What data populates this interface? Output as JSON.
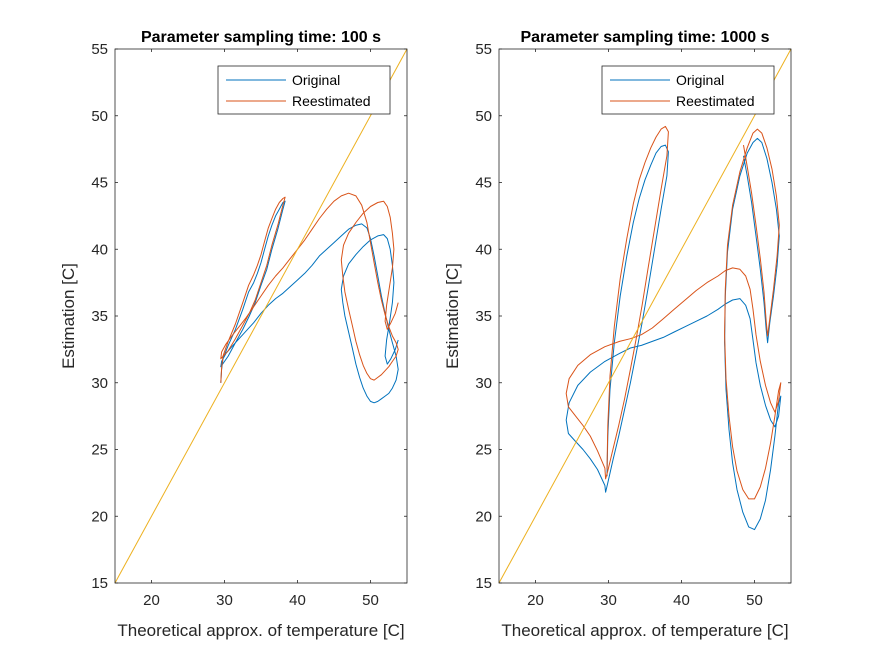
{
  "chart_data": [
    {
      "type": "line",
      "title": "Parameter sampling time: 100 s",
      "xlabel": "Theoretical approx. of temperature [C]",
      "ylabel": "Estimation [C]",
      "xlim": [
        15,
        55
      ],
      "ylim": [
        15,
        55
      ],
      "xticks": [
        20,
        30,
        40,
        50
      ],
      "yticks": [
        15,
        20,
        25,
        30,
        35,
        40,
        45,
        50,
        55
      ],
      "grid": false,
      "legend": "top-right",
      "colors": {
        "original": "#0072BD",
        "reestimated": "#D95319",
        "reference": "#EDB120"
      },
      "reference_line": {
        "x": [
          15,
          55
        ],
        "y": [
          15,
          55
        ]
      },
      "series": [
        {
          "name": "Original",
          "x": [
            29.5,
            29.6,
            29.8,
            30.5,
            31.5,
            32.5,
            33.3,
            34.0,
            34.5,
            35.0,
            35.5,
            36.0,
            36.5,
            37.0,
            37.5,
            38.0,
            38.3,
            38.0,
            37.3,
            36.5,
            35.8,
            35.0,
            34.2,
            33.4,
            32.5,
            31.5,
            30.5,
            29.5,
            29.6,
            30.2,
            31.0,
            32.0,
            33.0,
            34.0,
            35.0,
            36.0,
            37.0,
            38.0,
            39.0,
            40.0,
            41.0,
            42.0,
            43.0,
            44.0,
            45.0,
            46.0,
            47.0,
            48.0,
            48.8,
            49.5,
            50.0,
            50.5,
            51.0,
            51.5,
            52.0,
            52.5,
            53.0,
            53.5,
            53.8,
            53.5,
            53.0,
            52.5,
            52.0,
            51.5,
            51.0,
            50.5,
            50.0,
            49.5,
            49.0,
            48.5,
            48.0,
            47.5,
            47.0,
            46.5,
            46.2,
            46.0,
            46.3,
            47.0,
            48.0,
            49.0,
            50.0,
            51.0,
            51.8,
            52.3,
            52.7,
            53.0,
            53.2,
            53.0,
            52.6,
            52.2,
            52.0,
            52.3,
            52.8,
            53.4,
            53.8
          ],
          "y": [
            30.0,
            31.0,
            31.8,
            32.8,
            34.0,
            35.5,
            36.8,
            37.5,
            38.2,
            39.0,
            40.0,
            41.0,
            41.8,
            42.5,
            43.0,
            43.5,
            43.6,
            43.0,
            41.5,
            40.0,
            38.5,
            37.3,
            36.0,
            35.0,
            34.0,
            33.0,
            32.0,
            31.2,
            31.6,
            32.2,
            32.7,
            33.3,
            33.9,
            34.5,
            35.2,
            35.8,
            36.3,
            36.7,
            37.2,
            37.7,
            38.2,
            38.8,
            39.5,
            40.0,
            40.5,
            41.0,
            41.5,
            41.8,
            41.9,
            41.6,
            40.8,
            39.5,
            38.0,
            36.5,
            35.2,
            34.0,
            33.0,
            32.0,
            31.0,
            30.2,
            29.6,
            29.2,
            29.0,
            28.8,
            28.6,
            28.5,
            28.6,
            29.0,
            29.6,
            30.4,
            31.4,
            32.6,
            33.8,
            35.0,
            36.0,
            37.0,
            38.0,
            38.9,
            39.6,
            40.2,
            40.7,
            41.0,
            41.1,
            40.8,
            40.0,
            38.8,
            37.5,
            36.0,
            34.5,
            33.2,
            32.0,
            31.4,
            31.8,
            32.5,
            33.2
          ]
        },
        {
          "name": "Reestimated",
          "x": [
            29.5,
            29.6,
            29.8,
            30.5,
            31.5,
            32.5,
            33.3,
            34.0,
            34.5,
            35.0,
            35.5,
            36.0,
            36.5,
            37.0,
            37.5,
            38.0,
            38.3,
            38.0,
            37.3,
            36.5,
            35.8,
            35.0,
            34.2,
            33.4,
            32.5,
            31.5,
            30.5,
            29.5,
            29.6,
            30.2,
            31.0,
            32.0,
            33.0,
            34.0,
            35.0,
            36.0,
            37.0,
            38.0,
            39.0,
            40.0,
            41.0,
            42.0,
            43.0,
            44.0,
            45.0,
            46.0,
            47.0,
            48.0,
            48.8,
            49.5,
            50.0,
            50.5,
            51.0,
            51.5,
            52.0,
            52.5,
            53.0,
            53.5,
            53.8,
            53.5,
            53.0,
            52.5,
            52.0,
            51.5,
            51.0,
            50.5,
            50.0,
            49.5,
            49.0,
            48.5,
            48.0,
            47.5,
            47.0,
            46.5,
            46.2,
            46.0,
            46.3,
            47.0,
            48.0,
            49.0,
            50.0,
            51.0,
            51.8,
            52.3,
            52.7,
            53.0,
            53.2,
            53.0,
            52.6,
            52.2,
            52.0,
            52.3,
            52.8,
            53.4,
            53.8
          ],
          "y": [
            30.0,
            31.1,
            32.0,
            33.1,
            34.4,
            36.0,
            37.3,
            38.1,
            38.8,
            39.6,
            40.6,
            41.6,
            42.3,
            43.0,
            43.5,
            43.8,
            43.9,
            43.3,
            41.8,
            40.3,
            38.8,
            37.5,
            36.2,
            35.2,
            34.3,
            33.3,
            32.4,
            31.8,
            32.3,
            32.9,
            33.5,
            34.2,
            34.9,
            35.7,
            36.5,
            37.3,
            38.0,
            38.6,
            39.3,
            40.0,
            40.7,
            41.5,
            42.3,
            43.0,
            43.6,
            44.0,
            44.2,
            44.0,
            43.3,
            42.0,
            40.5,
            39.0,
            37.5,
            36.2,
            35.1,
            34.2,
            33.5,
            33.0,
            32.5,
            32.0,
            31.6,
            31.2,
            30.9,
            30.6,
            30.4,
            30.2,
            30.3,
            30.7,
            31.3,
            32.1,
            33.1,
            34.3,
            35.5,
            36.8,
            38.0,
            39.2,
            40.3,
            41.2,
            42.0,
            42.7,
            43.2,
            43.5,
            43.6,
            43.2,
            42.4,
            41.2,
            40.0,
            38.6,
            37.2,
            35.8,
            34.6,
            34.0,
            34.5,
            35.2,
            36.0
          ]
        }
      ]
    },
    {
      "type": "line",
      "title": "Parameter sampling time: 1000 s",
      "xlabel": "Theoretical approx. of temperature [C]",
      "ylabel": "Estimation [C]",
      "xlim": [
        15,
        55
      ],
      "ylim": [
        15,
        55
      ],
      "xticks": [
        20,
        30,
        40,
        50
      ],
      "yticks": [
        15,
        20,
        25,
        30,
        35,
        40,
        45,
        50,
        55
      ],
      "grid": false,
      "legend": "top-right",
      "colors": {
        "original": "#0072BD",
        "reestimated": "#D95319",
        "reference": "#EDB120"
      },
      "reference_line": {
        "x": [
          15,
          55
        ],
        "y": [
          15,
          55
        ]
      },
      "series": [
        {
          "name": "Original",
          "x": [
            29.8,
            29.9,
            30.2,
            30.8,
            31.6,
            32.5,
            33.4,
            34.2,
            35.0,
            35.8,
            36.5,
            37.2,
            37.8,
            38.2,
            38.0,
            37.2,
            36.3,
            35.4,
            34.6,
            33.8,
            33.0,
            32.2,
            31.4,
            30.6,
            29.9,
            29.6,
            29.5,
            28.5,
            27.5,
            26.5,
            25.5,
            24.5,
            24.2,
            24.6,
            25.8,
            27.5,
            29.5,
            31.5,
            33.0,
            34.5,
            36.0,
            37.5,
            39.0,
            40.5,
            42.0,
            43.5,
            45.0,
            46.0,
            47.0,
            48.0,
            48.8,
            49.4,
            49.8,
            50.2,
            50.8,
            51.5,
            52.2,
            52.8,
            53.3,
            53.6,
            53.3,
            52.8,
            52.2,
            51.5,
            50.8,
            50.0,
            49.2,
            48.4,
            47.6,
            47.0,
            46.5,
            46.1,
            45.9,
            46.0,
            46.3,
            47.0,
            48.0,
            49.0,
            49.8,
            50.4,
            51.0,
            51.7,
            52.4,
            53.0,
            53.4,
            53.1,
            52.6,
            52.1,
            51.8,
            51.6,
            51.3,
            50.8,
            50.2,
            49.6,
            49.0,
            48.5
          ],
          "y": [
            23.0,
            26.0,
            29.5,
            33.0,
            36.5,
            39.5,
            42.0,
            43.8,
            45.2,
            46.3,
            47.2,
            47.7,
            47.8,
            47.3,
            45.5,
            43.0,
            40.0,
            37.0,
            34.5,
            32.2,
            30.0,
            28.0,
            26.0,
            24.2,
            22.5,
            21.8,
            22.3,
            23.5,
            24.3,
            25.0,
            25.6,
            26.2,
            27.2,
            28.5,
            29.8,
            30.8,
            31.6,
            32.2,
            32.6,
            32.8,
            33.1,
            33.4,
            33.8,
            34.2,
            34.6,
            35.0,
            35.5,
            35.9,
            36.2,
            36.3,
            35.8,
            34.8,
            33.2,
            31.5,
            29.8,
            28.3,
            27.2,
            26.7,
            27.5,
            29.0,
            28.5,
            26.0,
            23.5,
            21.2,
            19.8,
            19.0,
            19.2,
            20.3,
            22.0,
            24.0,
            26.5,
            29.5,
            33.0,
            36.5,
            39.8,
            43.0,
            45.5,
            47.2,
            48.0,
            48.3,
            48.0,
            46.8,
            45.0,
            43.0,
            41.0,
            38.8,
            36.5,
            34.5,
            33.0,
            34.0,
            36.0,
            38.5,
            41.0,
            43.5,
            45.5,
            47.0
          ]
        },
        {
          "name": "Reestimated",
          "x": [
            29.8,
            29.9,
            30.2,
            30.8,
            31.6,
            32.5,
            33.4,
            34.2,
            35.0,
            35.8,
            36.5,
            37.2,
            37.8,
            38.2,
            38.0,
            37.2,
            36.3,
            35.4,
            34.6,
            33.8,
            33.0,
            32.2,
            31.4,
            30.6,
            29.9,
            29.6,
            29.5,
            28.5,
            27.5,
            26.5,
            25.5,
            24.5,
            24.2,
            24.6,
            25.8,
            27.5,
            29.5,
            31.5,
            33.0,
            34.5,
            36.0,
            37.5,
            39.0,
            40.5,
            42.0,
            43.5,
            45.0,
            46.0,
            47.0,
            48.0,
            48.8,
            49.4,
            49.8,
            50.2,
            50.8,
            51.5,
            52.2,
            52.8,
            53.3,
            53.6,
            53.3,
            52.8,
            52.2,
            51.5,
            50.8,
            50.0,
            49.2,
            48.4,
            47.6,
            47.0,
            46.5,
            46.1,
            45.9,
            46.0,
            46.3,
            47.0,
            48.0,
            49.0,
            49.8,
            50.4,
            51.0,
            51.7,
            52.4,
            53.0,
            53.4,
            53.1,
            52.6,
            52.1,
            51.8,
            51.6,
            51.3,
            50.8,
            50.2,
            49.6,
            49.0,
            48.5
          ],
          "y": [
            23.5,
            26.8,
            30.5,
            34.2,
            37.8,
            40.8,
            43.4,
            45.2,
            46.5,
            47.6,
            48.4,
            49.0,
            49.2,
            48.8,
            47.0,
            44.5,
            41.5,
            38.5,
            35.8,
            33.3,
            31.0,
            28.8,
            26.8,
            25.0,
            23.4,
            22.8,
            23.6,
            24.9,
            26.0,
            26.8,
            27.5,
            28.2,
            29.2,
            30.3,
            31.3,
            32.1,
            32.7,
            33.1,
            33.3,
            33.6,
            34.1,
            34.8,
            35.5,
            36.2,
            36.9,
            37.5,
            38.0,
            38.4,
            38.6,
            38.5,
            38.0,
            37.0,
            35.5,
            33.6,
            31.6,
            29.8,
            28.5,
            27.8,
            28.6,
            30.0,
            29.4,
            27.5,
            25.5,
            23.6,
            22.2,
            21.3,
            21.3,
            22.0,
            23.4,
            25.2,
            27.5,
            30.3,
            33.6,
            37.0,
            40.3,
            43.3,
            45.8,
            47.6,
            48.7,
            49.0,
            48.7,
            47.6,
            46.0,
            44.0,
            41.8,
            39.5,
            37.0,
            34.8,
            33.5,
            34.6,
            36.8,
            39.3,
            41.8,
            44.2,
            46.2,
            47.8
          ]
        }
      ]
    }
  ]
}
